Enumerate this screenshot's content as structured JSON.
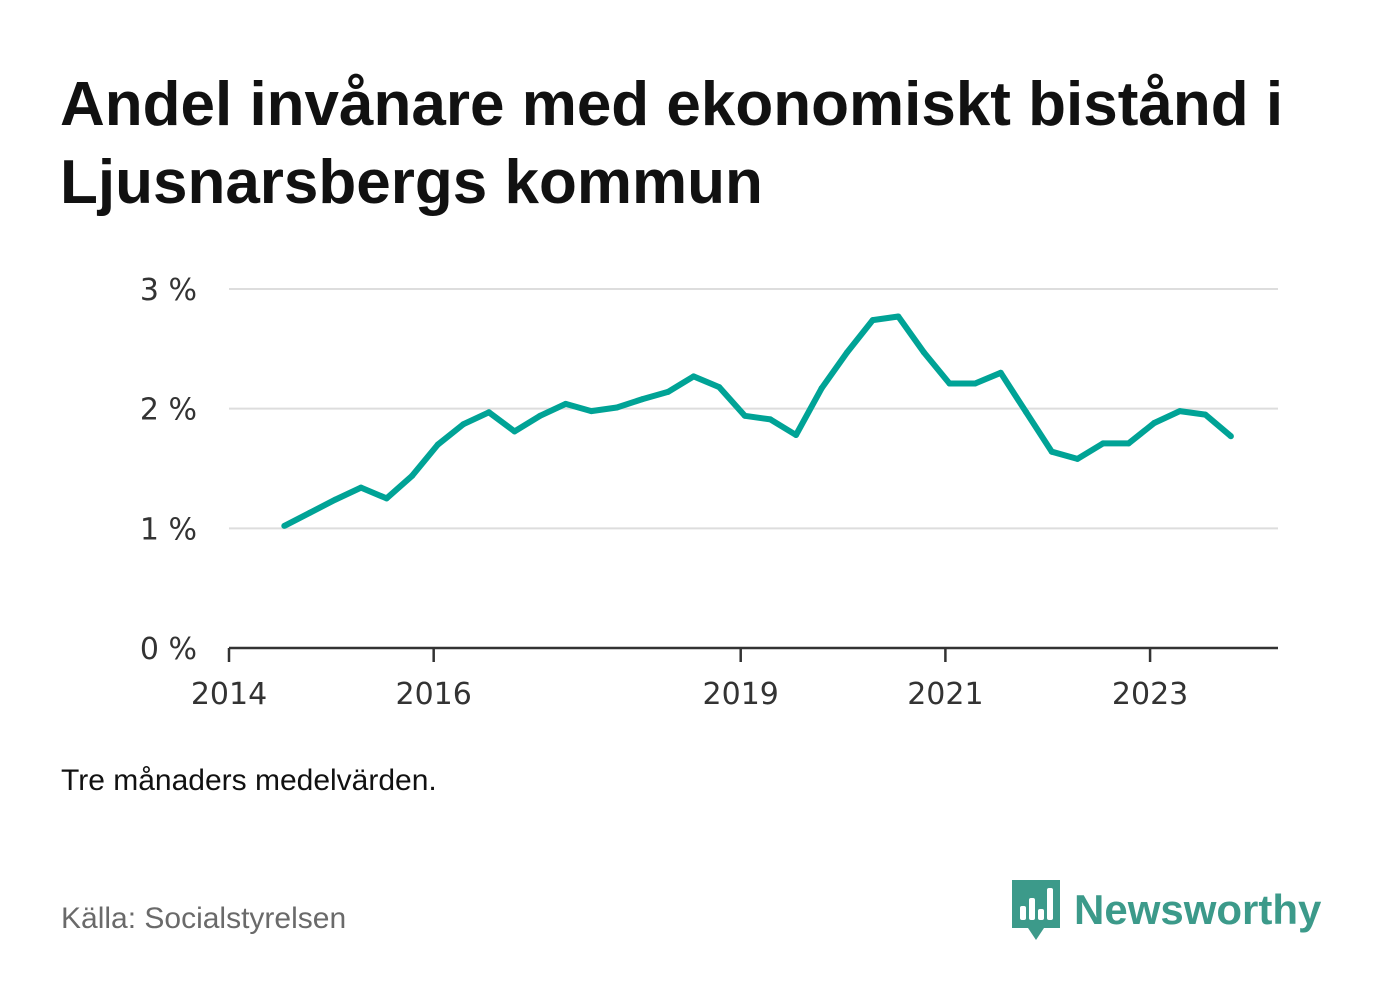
{
  "title": "Andel invånare med ekonomiskt bistånd i Ljusnarsbergs kommun",
  "note": "Tre månaders medelvärden.",
  "source": "Källa: Socialstyrelsen",
  "brand": {
    "name": "Newsworthy",
    "icon": "newsworthy-chart-bubble-icon",
    "color": "#3c9a8a"
  },
  "colors": {
    "line": "#00a396",
    "grid": "#dddddd",
    "axis": "#333333"
  },
  "chart_data": {
    "type": "line",
    "title": "Andel invånare med ekonomiskt bistånd i Ljusnarsbergs kommun",
    "xlabel": "",
    "ylabel": "",
    "xlim": [
      2014.0,
      2024.25
    ],
    "ylim": [
      0,
      3
    ],
    "grid": true,
    "legend": "none",
    "y_ticks": [
      {
        "value": 0,
        "label": "0 %"
      },
      {
        "value": 1,
        "label": "1 %"
      },
      {
        "value": 2,
        "label": "2 %"
      },
      {
        "value": 3,
        "label": "3 %"
      }
    ],
    "x_ticks": [
      {
        "value": 2014,
        "label": "2014"
      },
      {
        "value": 2016,
        "label": "2016"
      },
      {
        "value": 2019,
        "label": "2019"
      },
      {
        "value": 2021,
        "label": "2021"
      },
      {
        "value": 2023,
        "label": "2023"
      }
    ],
    "series": [
      {
        "values": [
          {
            "x": 2014.54,
            "y": 1.02
          },
          {
            "x": 2014.79,
            "y": 1.13
          },
          {
            "x": 2015.04,
            "y": 1.24
          },
          {
            "x": 2015.29,
            "y": 1.34
          },
          {
            "x": 2015.54,
            "y": 1.25
          },
          {
            "x": 2015.79,
            "y": 1.44
          },
          {
            "x": 2016.04,
            "y": 1.7
          },
          {
            "x": 2016.29,
            "y": 1.87
          },
          {
            "x": 2016.54,
            "y": 1.97
          },
          {
            "x": 2016.79,
            "y": 1.81
          },
          {
            "x": 2017.04,
            "y": 1.94
          },
          {
            "x": 2017.29,
            "y": 2.04
          },
          {
            "x": 2017.54,
            "y": 1.98
          },
          {
            "x": 2017.79,
            "y": 2.01
          },
          {
            "x": 2018.04,
            "y": 2.08
          },
          {
            "x": 2018.29,
            "y": 2.14
          },
          {
            "x": 2018.54,
            "y": 2.27
          },
          {
            "x": 2018.79,
            "y": 2.18
          },
          {
            "x": 2019.04,
            "y": 1.94
          },
          {
            "x": 2019.29,
            "y": 1.91
          },
          {
            "x": 2019.54,
            "y": 1.78
          },
          {
            "x": 2019.79,
            "y": 2.17
          },
          {
            "x": 2020.04,
            "y": 2.47
          },
          {
            "x": 2020.29,
            "y": 2.74
          },
          {
            "x": 2020.54,
            "y": 2.77
          },
          {
            "x": 2020.79,
            "y": 2.47
          },
          {
            "x": 2021.04,
            "y": 2.21
          },
          {
            "x": 2021.29,
            "y": 2.21
          },
          {
            "x": 2021.54,
            "y": 2.3
          },
          {
            "x": 2021.79,
            "y": 1.97
          },
          {
            "x": 2022.04,
            "y": 1.64
          },
          {
            "x": 2022.29,
            "y": 1.58
          },
          {
            "x": 2022.54,
            "y": 1.71
          },
          {
            "x": 2022.79,
            "y": 1.71
          },
          {
            "x": 2023.04,
            "y": 1.88
          },
          {
            "x": 2023.29,
            "y": 1.98
          },
          {
            "x": 2023.54,
            "y": 1.95
          },
          {
            "x": 2023.79,
            "y": 1.77
          }
        ]
      }
    ]
  }
}
